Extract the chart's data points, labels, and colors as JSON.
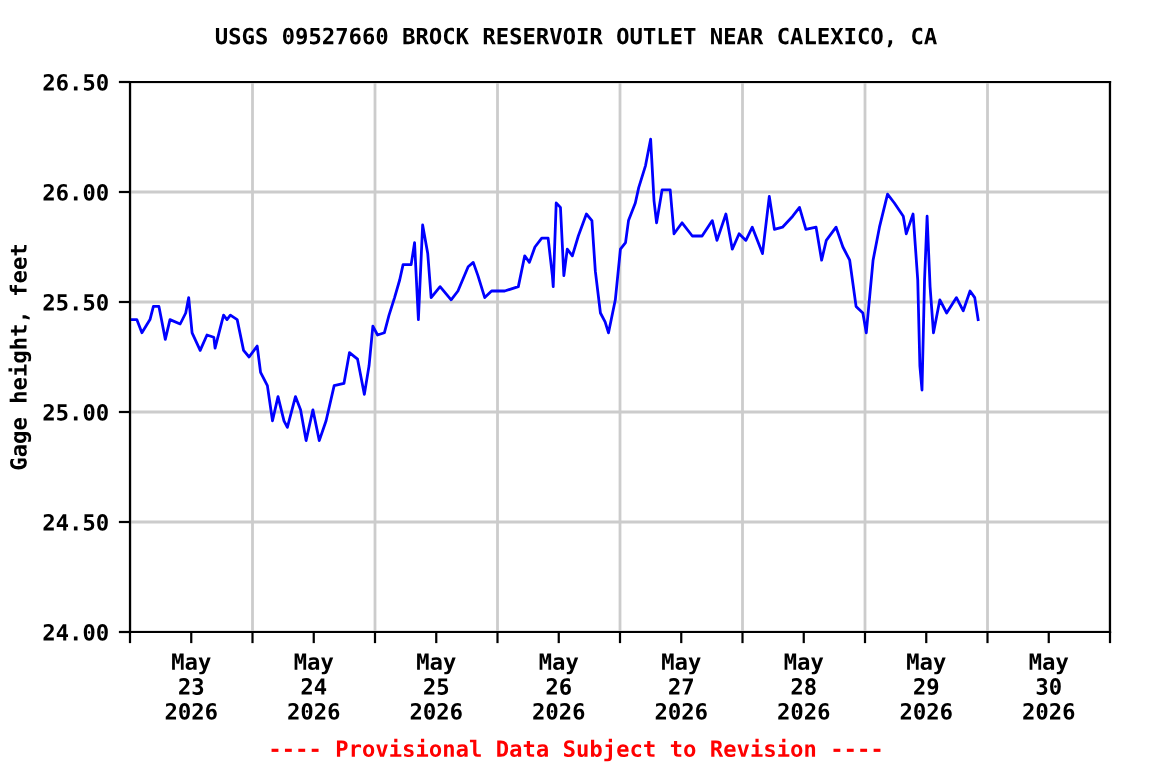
{
  "chart_data": {
    "type": "line",
    "title": "USGS 09527660 BROCK RESERVOIR OUTLET NEAR CALEXICO, CA",
    "ylabel": "Gage height, feet",
    "annotations": [
      "---- Provisional Data Subject to Revision ----"
    ],
    "xlim": [
      "2026-05-23T00:00",
      "2026-05-31T00:00"
    ],
    "xticks": [
      {
        "value": "2026-05-23T00:00",
        "label": null
      },
      {
        "value": "2026-05-23T12:00",
        "label": "May\n23\n2026"
      },
      {
        "value": "2026-05-24T00:00",
        "label": null
      },
      {
        "value": "2026-05-24T12:00",
        "label": "May\n24\n2026"
      },
      {
        "value": "2026-05-25T00:00",
        "label": null
      },
      {
        "value": "2026-05-25T12:00",
        "label": "May\n25\n2026"
      },
      {
        "value": "2026-05-26T00:00",
        "label": null
      },
      {
        "value": "2026-05-26T12:00",
        "label": "May\n26\n2026"
      },
      {
        "value": "2026-05-27T00:00",
        "label": null
      },
      {
        "value": "2026-05-27T12:00",
        "label": "May\n27\n2026"
      },
      {
        "value": "2026-05-28T00:00",
        "label": null
      },
      {
        "value": "2026-05-28T12:00",
        "label": "May\n28\n2026"
      },
      {
        "value": "2026-05-29T00:00",
        "label": null
      },
      {
        "value": "2026-05-29T12:00",
        "label": "May\n29\n2026"
      },
      {
        "value": "2026-05-30T00:00",
        "label": null
      },
      {
        "value": "2026-05-30T12:00",
        "label": "May\n30\n2026"
      },
      {
        "value": "2026-05-31T00:00",
        "label": null
      }
    ],
    "ylim": [
      24,
      26.5
    ],
    "yticks": [
      {
        "value": 24,
        "label": "24.00"
      },
      {
        "value": 24.5,
        "label": "24.50"
      },
      {
        "value": 25,
        "label": "25.00"
      },
      {
        "value": 25.5,
        "label": "25.50"
      },
      {
        "value": 26,
        "label": "26.00"
      },
      {
        "value": 26.5,
        "label": "26.50"
      }
    ],
    "grid": true,
    "series": [
      {
        "color": "#0000ff",
        "x": [
          "2026-05-23T00:25",
          "2026-05-23T01:20",
          "2026-05-23T02:20",
          "2026-05-23T03:55",
          "2026-05-23T04:35",
          "2026-05-23T05:40",
          "2026-05-23T06:10",
          "2026-05-23T06:55",
          "2026-05-23T07:50",
          "2026-05-23T09:50",
          "2026-05-23T10:55",
          "2026-05-23T11:30",
          "2026-05-23T12:10",
          "2026-05-23T13:45",
          "2026-05-23T15:05",
          "2026-05-23T16:25",
          "2026-05-23T16:40",
          "2026-05-23T18:20",
          "2026-05-23T19:00",
          "2026-05-23T19:40",
          "2026-05-23T21:00",
          "2026-05-23T22:15",
          "2026-05-23T23:20",
          "2026-05-24T00:55",
          "2026-05-24T01:35",
          "2026-05-24T02:55",
          "2026-05-24T03:55",
          "2026-05-24T05:00",
          "2026-05-24T06:10",
          "2026-05-24T06:50",
          "2026-05-24T08:25",
          "2026-05-24T09:25",
          "2026-05-24T10:30",
          "2026-05-24T11:50",
          "2026-05-24T13:05",
          "2026-05-24T14:25",
          "2026-05-24T16:00",
          "2026-05-24T17:55",
          "2026-05-24T19:00",
          "2026-05-24T20:35",
          "2026-05-24T21:55",
          "2026-05-24T22:50",
          "2026-05-24T23:35",
          "2026-05-25T00:30",
          "2026-05-25T01:50",
          "2026-05-25T02:45",
          "2026-05-25T03:50",
          "2026-05-25T04:50",
          "2026-05-25T05:30",
          "2026-05-25T07:05",
          "2026-05-25T07:45",
          "2026-05-25T08:30",
          "2026-05-25T09:20",
          "2026-05-25T10:20",
          "2026-05-25T11:00",
          "2026-05-25T12:45",
          "2026-05-25T14:55",
          "2026-05-25T16:15",
          "2026-05-25T18:15",
          "2026-05-25T19:15",
          "2026-05-25T20:10",
          "2026-05-25T21:30",
          "2026-05-25T22:50",
          "2026-05-26T01:25",
          "2026-05-26T04:05",
          "2026-05-26T05:20",
          "2026-05-26T06:15",
          "2026-05-26T07:20",
          "2026-05-26T08:40",
          "2026-05-26T09:55",
          "2026-05-26T10:45",
          "2026-05-26T10:55",
          "2026-05-26T11:30",
          "2026-05-26T12:20",
          "2026-05-26T13:00",
          "2026-05-26T13:40",
          "2026-05-26T14:40",
          "2026-05-26T15:50",
          "2026-05-26T17:25",
          "2026-05-26T18:30",
          "2026-05-26T19:10",
          "2026-05-26T20:10",
          "2026-05-26T21:05",
          "2026-05-26T21:45",
          "2026-05-26T23:05",
          "2026-05-27T00:05",
          "2026-05-27T01:05",
          "2026-05-27T01:40",
          "2026-05-27T03:00",
          "2026-05-27T03:40",
          "2026-05-27T05:00",
          "2026-05-27T06:00",
          "2026-05-27T06:40",
          "2026-05-27T07:10",
          "2026-05-27T08:15",
          "2026-05-27T09:50",
          "2026-05-27T10:35",
          "2026-05-27T12:10",
          "2026-05-27T14:10",
          "2026-05-27T16:05",
          "2026-05-27T18:05",
          "2026-05-27T19:00",
          "2026-05-27T20:45",
          "2026-05-27T22:00",
          "2026-05-27T23:20",
          "2026-05-28T00:40",
          "2026-05-28T01:55",
          "2026-05-28T03:55",
          "2026-05-28T05:15",
          "2026-05-28T06:15",
          "2026-05-28T07:50",
          "2026-05-28T09:50",
          "2026-05-28T11:10",
          "2026-05-28T12:25",
          "2026-05-28T14:25",
          "2026-05-28T15:30",
          "2026-05-28T16:25",
          "2026-05-28T18:20",
          "2026-05-28T19:40",
          "2026-05-28T21:00",
          "2026-05-28T22:15",
          "2026-05-28T23:35",
          "2026-05-29T00:15",
          "2026-05-29T01:35",
          "2026-05-29T02:50",
          "2026-05-29T04:25",
          "2026-05-29T05:45",
          "2026-05-29T07:30",
          "2026-05-29T08:05",
          "2026-05-29T09:25",
          "2026-05-29T10:20",
          "2026-05-29T10:45",
          "2026-05-29T11:10",
          "2026-05-29T11:40",
          "2026-05-29T12:10",
          "2026-05-29T12:45",
          "2026-05-29T13:25",
          "2026-05-29T14:40",
          "2026-05-29T16:00",
          "2026-05-29T17:55",
          "2026-05-29T19:15",
          "2026-05-29T20:35",
          "2026-05-29T21:30",
          "2026-05-29T22:10"
        ],
        "values": [
          25.42,
          25.42,
          25.36,
          25.42,
          25.48,
          25.48,
          25.42,
          25.33,
          25.42,
          25.4,
          25.45,
          25.52,
          25.36,
          25.28,
          25.35,
          25.34,
          25.29,
          25.44,
          25.42,
          25.44,
          25.42,
          25.28,
          25.25,
          25.3,
          25.18,
          25.12,
          24.96,
          25.07,
          24.96,
          24.93,
          25.07,
          25.01,
          24.87,
          25.01,
          24.87,
          24.96,
          25.12,
          25.13,
          25.27,
          25.24,
          25.08,
          25.21,
          25.39,
          25.35,
          25.36,
          25.44,
          25.52,
          25.6,
          25.67,
          25.67,
          25.77,
          25.42,
          25.85,
          25.72,
          25.52,
          25.57,
          25.51,
          25.55,
          25.66,
          25.68,
          25.62,
          25.52,
          25.55,
          25.55,
          25.57,
          25.71,
          25.68,
          25.75,
          25.79,
          25.79,
          25.62,
          25.57,
          25.95,
          25.93,
          25.62,
          25.74,
          25.71,
          25.8,
          25.9,
          25.87,
          25.64,
          25.45,
          25.41,
          25.36,
          25.51,
          25.74,
          25.77,
          25.87,
          25.95,
          26.02,
          26.12,
          26.24,
          25.96,
          25.86,
          26.01,
          26.01,
          25.81,
          25.86,
          25.8,
          25.8,
          25.87,
          25.78,
          25.9,
          25.74,
          25.81,
          25.78,
          25.84,
          25.72,
          25.98,
          25.83,
          25.84,
          25.89,
          25.93,
          25.83,
          25.84,
          25.69,
          25.78,
          25.84,
          25.75,
          25.69,
          25.48,
          25.45,
          25.36,
          25.69,
          25.84,
          25.99,
          25.95,
          25.89,
          25.81,
          25.9,
          25.6,
          25.21,
          25.1,
          25.6,
          25.89,
          25.57,
          25.36,
          25.51,
          25.45,
          25.52,
          25.46,
          25.55,
          25.52,
          25.42
        ]
      }
    ]
  }
}
